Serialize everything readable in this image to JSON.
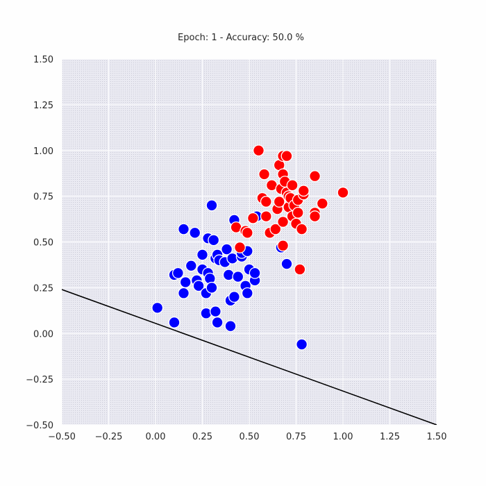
{
  "chart_data": {
    "type": "scatter",
    "title": "Epoch: 1 - Accuracy: 50.0 %",
    "xlabel": "",
    "ylabel": "",
    "xlim": [
      -0.5,
      1.5
    ],
    "ylim": [
      -0.5,
      1.5
    ],
    "x_ticks": [
      -0.5,
      -0.25,
      0.0,
      0.25,
      0.5,
      0.75,
      1.0,
      1.25,
      1.5
    ],
    "x_tick_labels": [
      "−0.50",
      "−0.25",
      "0.00",
      "0.25",
      "0.50",
      "0.75",
      "1.00",
      "1.25",
      "1.50"
    ],
    "y_ticks": [
      -0.5,
      -0.25,
      0.0,
      0.25,
      0.5,
      0.75,
      1.0,
      1.25,
      1.5
    ],
    "y_tick_labels": [
      "−0.50",
      "−0.25",
      "0.00",
      "0.25",
      "0.50",
      "0.75",
      "1.00",
      "1.25",
      "1.50"
    ],
    "grid": true,
    "background_color": "#eaeaf2",
    "grid_color": "#ffffff",
    "decision_boundary": {
      "color": "#000000",
      "points": [
        [
          -0.5,
          0.24
        ],
        [
          1.5,
          -0.5
        ]
      ]
    },
    "series": [
      {
        "color": "#0000ff",
        "points": [
          [
            0.01,
            0.14
          ],
          [
            0.1,
            0.06
          ],
          [
            0.1,
            0.32
          ],
          [
            0.12,
            0.33
          ],
          [
            0.15,
            0.22
          ],
          [
            0.15,
            0.57
          ],
          [
            0.16,
            0.28
          ],
          [
            0.19,
            0.37
          ],
          [
            0.21,
            0.55
          ],
          [
            0.22,
            0.29
          ],
          [
            0.23,
            0.26
          ],
          [
            0.25,
            0.35
          ],
          [
            0.25,
            0.43
          ],
          [
            0.27,
            0.22
          ],
          [
            0.27,
            0.11
          ],
          [
            0.28,
            0.33
          ],
          [
            0.28,
            0.52
          ],
          [
            0.29,
            0.3
          ],
          [
            0.3,
            0.7
          ],
          [
            0.3,
            0.25
          ],
          [
            0.31,
            0.51
          ],
          [
            0.32,
            0.12
          ],
          [
            0.32,
            0.41
          ],
          [
            0.33,
            0.06
          ],
          [
            0.33,
            0.43
          ],
          [
            0.34,
            0.4
          ],
          [
            0.37,
            0.39
          ],
          [
            0.38,
            0.46
          ],
          [
            0.39,
            0.32
          ],
          [
            0.4,
            0.04
          ],
          [
            0.4,
            0.18
          ],
          [
            0.41,
            0.41
          ],
          [
            0.42,
            0.2
          ],
          [
            0.42,
            0.62
          ],
          [
            0.44,
            0.31
          ],
          [
            0.46,
            0.42
          ],
          [
            0.46,
            0.44
          ],
          [
            0.48,
            0.26
          ],
          [
            0.49,
            0.22
          ],
          [
            0.49,
            0.45
          ],
          [
            0.5,
            0.35
          ],
          [
            0.53,
            0.29
          ],
          [
            0.53,
            0.33
          ],
          [
            0.54,
            0.64
          ],
          [
            0.67,
            0.47
          ],
          [
            0.7,
            0.38
          ],
          [
            0.78,
            -0.06
          ]
        ]
      },
      {
        "color": "#ff0000",
        "points": [
          [
            0.43,
            0.58
          ],
          [
            0.45,
            0.47
          ],
          [
            0.48,
            0.56
          ],
          [
            0.49,
            0.55
          ],
          [
            0.52,
            0.63
          ],
          [
            0.55,
            1.0
          ],
          [
            0.57,
            0.74
          ],
          [
            0.58,
            0.87
          ],
          [
            0.59,
            0.72
          ],
          [
            0.59,
            0.64
          ],
          [
            0.61,
            0.55
          ],
          [
            0.62,
            0.81
          ],
          [
            0.64,
            0.57
          ],
          [
            0.65,
            0.68
          ],
          [
            0.66,
            0.72
          ],
          [
            0.66,
            0.92
          ],
          [
            0.67,
            0.79
          ],
          [
            0.68,
            0.97
          ],
          [
            0.68,
            0.87
          ],
          [
            0.68,
            0.61
          ],
          [
            0.68,
            0.48
          ],
          [
            0.69,
            0.83
          ],
          [
            0.7,
            0.97
          ],
          [
            0.7,
            0.77
          ],
          [
            0.71,
            0.75
          ],
          [
            0.71,
            0.69
          ],
          [
            0.72,
            0.74
          ],
          [
            0.73,
            0.64
          ],
          [
            0.73,
            0.81
          ],
          [
            0.74,
            0.7
          ],
          [
            0.75,
            0.6
          ],
          [
            0.76,
            0.73
          ],
          [
            0.76,
            0.66
          ],
          [
            0.77,
            0.35
          ],
          [
            0.78,
            0.57
          ],
          [
            0.79,
            0.76
          ],
          [
            0.79,
            0.78
          ],
          [
            0.85,
            0.86
          ],
          [
            0.85,
            0.66
          ],
          [
            0.85,
            0.64
          ],
          [
            0.89,
            0.71
          ],
          [
            1.0,
            0.77
          ]
        ]
      }
    ]
  }
}
